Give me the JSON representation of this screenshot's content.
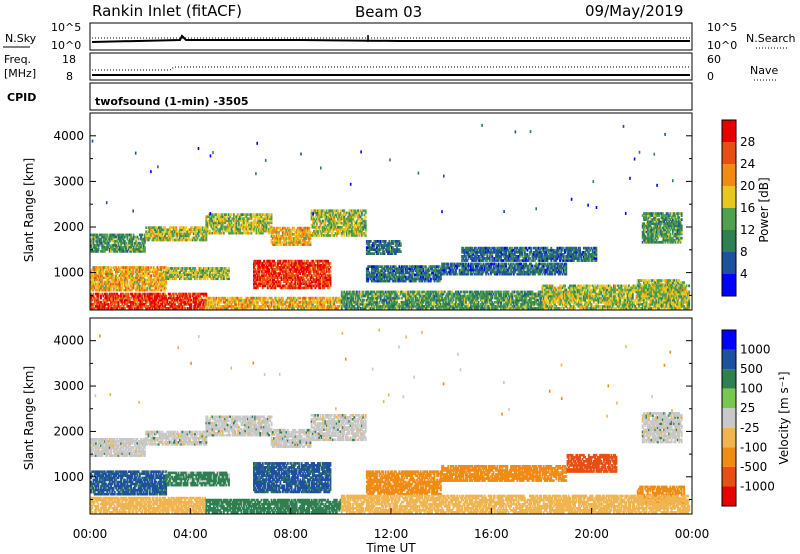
{
  "header": {
    "station": "Rankin Inlet (fitACF)",
    "beam": "Beam 03",
    "date": "09/May/2019"
  },
  "nsky_panel": {
    "left_label": "N.Sky",
    "left_ticks": [
      "10^5",
      "10^0"
    ],
    "right_label": "N.Search",
    "right_ticks": [
      "10^5",
      "10^0"
    ]
  },
  "freq_panel": {
    "left_label_1": "Freq.",
    "left_label_2": "[MHz]",
    "left_ticks": [
      "18",
      "8"
    ],
    "right_label": "Nave",
    "right_ticks": [
      "60",
      "0"
    ]
  },
  "cpid_panel": {
    "label": "CPID",
    "text": "twofsound (1-min) -3505"
  },
  "colors": {
    "power": [
      "#0000ff",
      "#1e50a0",
      "#2f8050",
      "#50a050",
      "#e8c81e",
      "#f08c14",
      "#e65014",
      "#e60000"
    ],
    "velocity": [
      "#0000ff",
      "#1e50a0",
      "#2f8050",
      "#78c850",
      "#c8c8c8",
      "#f0b450",
      "#f08c14",
      "#e65014",
      "#e60000"
    ]
  },
  "chart_data": [
    {
      "type": "heatmap",
      "panel": "power",
      "ylabel": "Slant Range [km]",
      "yticks": [
        "1000",
        "2000",
        "3000",
        "4000"
      ],
      "ylim": [
        180,
        4500
      ],
      "xlim_hours": [
        0,
        24
      ],
      "colorbar_label": "Power [dB]",
      "colorbar_ticks": [
        "4",
        "8",
        "12",
        "16",
        "20",
        "24",
        "28"
      ],
      "bands": [
        {
          "t0": 0.0,
          "t1": 2.2,
          "r0": 1450,
          "r1": 1850,
          "value": 12
        },
        {
          "t0": 2.2,
          "t1": 4.6,
          "r0": 1700,
          "r1": 2000,
          "value": 16
        },
        {
          "t0": 4.6,
          "t1": 7.2,
          "r0": 1850,
          "r1": 2300,
          "value": 16
        },
        {
          "t0": 7.2,
          "t1": 8.8,
          "r0": 1600,
          "r1": 2000,
          "value": 20
        },
        {
          "t0": 8.8,
          "t1": 11.0,
          "r0": 1800,
          "r1": 2350,
          "value": 16
        },
        {
          "t0": 11.0,
          "t1": 12.4,
          "r0": 1400,
          "r1": 1700,
          "value": 8
        },
        {
          "t0": 14.8,
          "t1": 20.2,
          "r0": 1250,
          "r1": 1550,
          "value": 8
        },
        {
          "t0": 22.0,
          "t1": 23.6,
          "r0": 1650,
          "r1": 2300,
          "value": 12
        },
        {
          "t0": 0.0,
          "t1": 3.0,
          "r0": 600,
          "r1": 1100,
          "value": 20
        },
        {
          "t0": 3.0,
          "t1": 5.5,
          "r0": 850,
          "r1": 1100,
          "value": 16
        },
        {
          "t0": 6.5,
          "t1": 9.6,
          "r0": 650,
          "r1": 1250,
          "value": 28
        },
        {
          "t0": 11.0,
          "t1": 14.0,
          "r0": 800,
          "r1": 1150,
          "value": 8
        },
        {
          "t0": 14.0,
          "t1": 19.0,
          "r0": 950,
          "r1": 1200,
          "value": 8
        },
        {
          "t0": 21.8,
          "t1": 23.7,
          "r0": 450,
          "r1": 850,
          "value": 16
        },
        {
          "t0": 0.0,
          "t1": 4.6,
          "r0": 200,
          "r1": 550,
          "value": 28
        },
        {
          "t0": 4.6,
          "t1": 10.0,
          "r0": 200,
          "r1": 450,
          "value": 20
        },
        {
          "t0": 10.0,
          "t1": 18.0,
          "r0": 200,
          "r1": 600,
          "value": 12
        },
        {
          "t0": 18.0,
          "t1": 23.9,
          "r0": 200,
          "r1": 700,
          "value": 16
        }
      ]
    },
    {
      "type": "heatmap",
      "panel": "velocity",
      "ylabel": "Slant Range [km]",
      "yticks": [
        "1000",
        "2000",
        "3000",
        "4000"
      ],
      "ylim": [
        180,
        4500
      ],
      "xlim_hours": [
        0,
        24
      ],
      "xlabel": "Time UT",
      "xticks": [
        "00:00",
        "04:00",
        "08:00",
        "12:00",
        "16:00",
        "20:00",
        "00:00"
      ],
      "colorbar_label": "Velocity [m s⁻¹]",
      "colorbar_ticks": [
        "1000",
        "500",
        "100",
        "25",
        "-25",
        "-100",
        "-500",
        "-1000"
      ],
      "bands": [
        {
          "t0": 0.0,
          "t1": 2.2,
          "r0": 1450,
          "r1": 1850,
          "value": 0
        },
        {
          "t0": 2.2,
          "t1": 4.6,
          "r0": 1700,
          "r1": 2000,
          "value": 0
        },
        {
          "t0": 4.6,
          "t1": 7.2,
          "r0": 1900,
          "r1": 2350,
          "value": 0
        },
        {
          "t0": 7.2,
          "t1": 8.8,
          "r0": 1650,
          "r1": 2050,
          "value": 0
        },
        {
          "t0": 8.8,
          "t1": 11.0,
          "r0": 1800,
          "r1": 2350,
          "value": 0
        },
        {
          "t0": 22.0,
          "t1": 23.6,
          "r0": 1750,
          "r1": 2400,
          "value": 0
        },
        {
          "t0": 0.0,
          "t1": 3.0,
          "r0": 600,
          "r1": 1100,
          "value": 200
        },
        {
          "t0": 3.0,
          "t1": 5.5,
          "r0": 800,
          "r1": 1100,
          "value": 50
        },
        {
          "t0": 6.5,
          "t1": 9.6,
          "r0": 650,
          "r1": 1300,
          "value": 200
        },
        {
          "t0": 11.0,
          "t1": 14.0,
          "r0": 600,
          "r1": 1100,
          "value": -300
        },
        {
          "t0": 14.0,
          "t1": 19.0,
          "r0": 900,
          "r1": 1250,
          "value": -300
        },
        {
          "t0": 19.0,
          "t1": 21.0,
          "r0": 1100,
          "r1": 1500,
          "value": -700
        },
        {
          "t0": 21.8,
          "t1": 23.7,
          "r0": 400,
          "r1": 800,
          "value": -300
        },
        {
          "t0": 0.0,
          "t1": 4.6,
          "r0": 200,
          "r1": 550,
          "value": -60
        },
        {
          "t0": 4.6,
          "t1": 10.0,
          "r0": 200,
          "r1": 500,
          "value": 60
        },
        {
          "t0": 10.0,
          "t1": 18.0,
          "r0": 200,
          "r1": 600,
          "value": -60
        },
        {
          "t0": 18.0,
          "t1": 23.9,
          "r0": 200,
          "r1": 600,
          "value": -60
        }
      ]
    }
  ]
}
